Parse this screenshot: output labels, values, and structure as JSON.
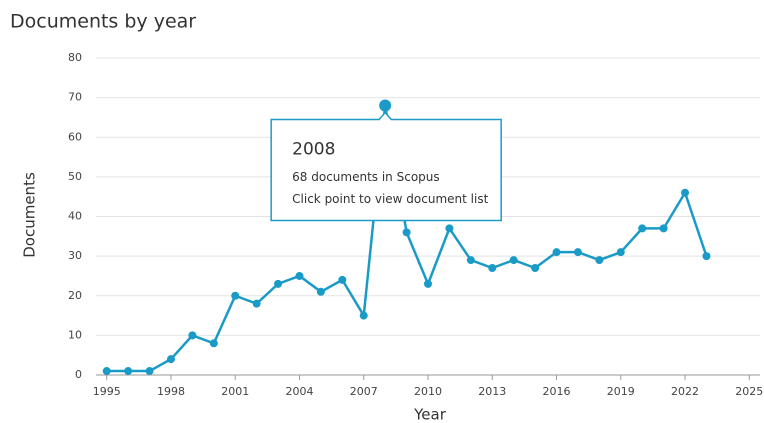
{
  "chart_data": {
    "type": "line",
    "title": "Documents by year",
    "xlabel": "Year",
    "ylabel": "Documents",
    "x": [
      1995,
      1996,
      1997,
      1998,
      1999,
      2000,
      2001,
      2002,
      2003,
      2004,
      2005,
      2006,
      2007,
      2008,
      2009,
      2010,
      2011,
      2012,
      2013,
      2014,
      2015,
      2016,
      2017,
      2018,
      2019,
      2020,
      2021,
      2022,
      2023
    ],
    "series": [
      {
        "name": "Documents",
        "color": "#1a9bc7",
        "values": [
          1,
          1,
          1,
          4,
          10,
          8,
          20,
          18,
          23,
          25,
          21,
          24,
          15,
          68,
          36,
          23,
          37,
          29,
          27,
          29,
          27,
          31,
          31,
          29,
          31,
          37,
          37,
          46,
          30
        ]
      }
    ],
    "xlim": [
      1994.5,
      2025.5
    ],
    "xticks": [
      1995,
      1998,
      2001,
      2004,
      2007,
      2010,
      2013,
      2016,
      2019,
      2022,
      2025
    ],
    "ylim": [
      0,
      80
    ],
    "yticks": [
      0,
      10,
      20,
      30,
      40,
      50,
      60,
      70,
      80
    ],
    "grid": true,
    "tooltip": {
      "point": 13,
      "title": "2008",
      "lines": [
        "68 documents in Scopus",
        "Click point to view document list"
      ]
    }
  }
}
